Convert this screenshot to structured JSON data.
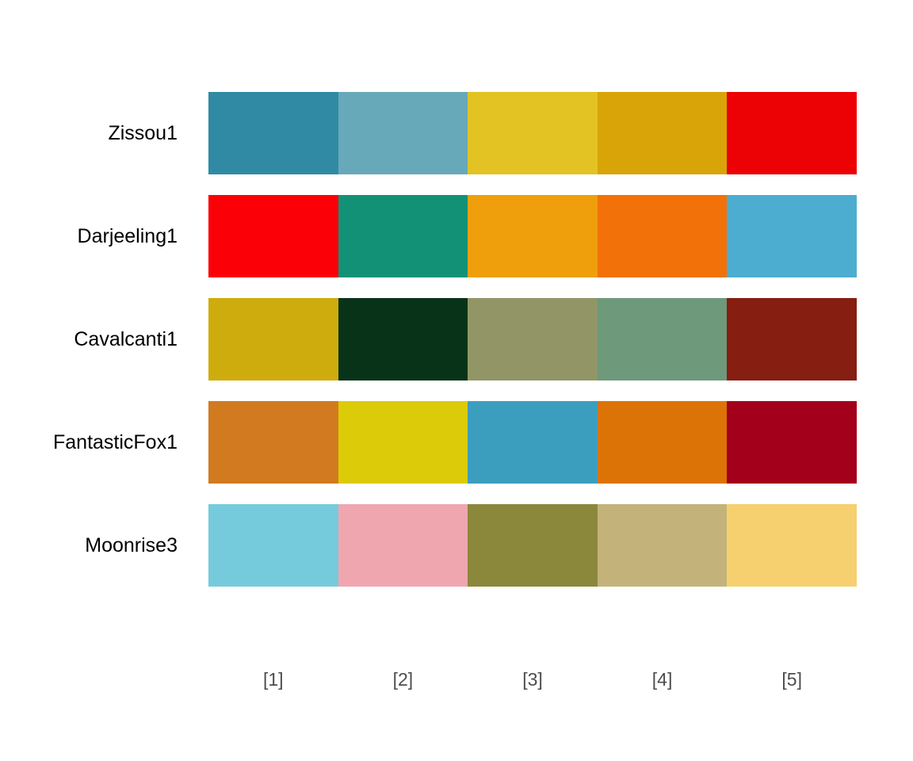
{
  "chart_data": {
    "type": "heatmap",
    "title": "",
    "xlabel": "",
    "ylabel": "",
    "categories": [
      "[1]",
      "[2]",
      "[3]",
      "[4]",
      "[5]"
    ],
    "series": [
      {
        "name": "Zissou1",
        "values": [
          "#3B9AB2",
          "#78B7C5",
          "#EBCC2A",
          "#E1AF00",
          "#F21A00"
        ]
      },
      {
        "name": "Darjeeling1",
        "values": [
          "#FF0000",
          "#00A08A",
          "#F2AD00",
          "#F98400",
          "#5BBCD6"
        ]
      },
      {
        "name": "Cavalcanti1",
        "values": [
          "#D8B70A",
          "#02401B",
          "#A2A475",
          "#81A88D",
          "#972D15"
        ]
      },
      {
        "name": "FantasticFox1",
        "values": [
          "#DD8D29",
          "#E2D200",
          "#46ACC8",
          "#E58601",
          "#B40F20"
        ]
      },
      {
        "name": "Moonrise3",
        "values": [
          "#85D4E3",
          "#F4B5BD",
          "#9C964A",
          "#CDC08C",
          "#FAD77B"
        ]
      }
    ],
    "grid": false,
    "legend": "none"
  },
  "render_colors": [
    [
      "#318AA3",
      "#67A9B9",
      "#E3C323",
      "#D9A408",
      "#EC0105"
    ],
    [
      "#FB0007",
      "#139177",
      "#EE9F0B",
      "#F37109",
      "#4DADD0"
    ],
    [
      "#CFAC0D",
      "#093319",
      "#929666",
      "#6E997A",
      "#861E12"
    ],
    [
      "#D27A1F",
      "#DCCB08",
      "#3B9EBF",
      "#DC7307",
      "#A3001B"
    ],
    [
      "#75CBDC",
      "#F0A6AF",
      "#8B883B",
      "#C3B37B",
      "#F6D06E"
    ]
  ]
}
